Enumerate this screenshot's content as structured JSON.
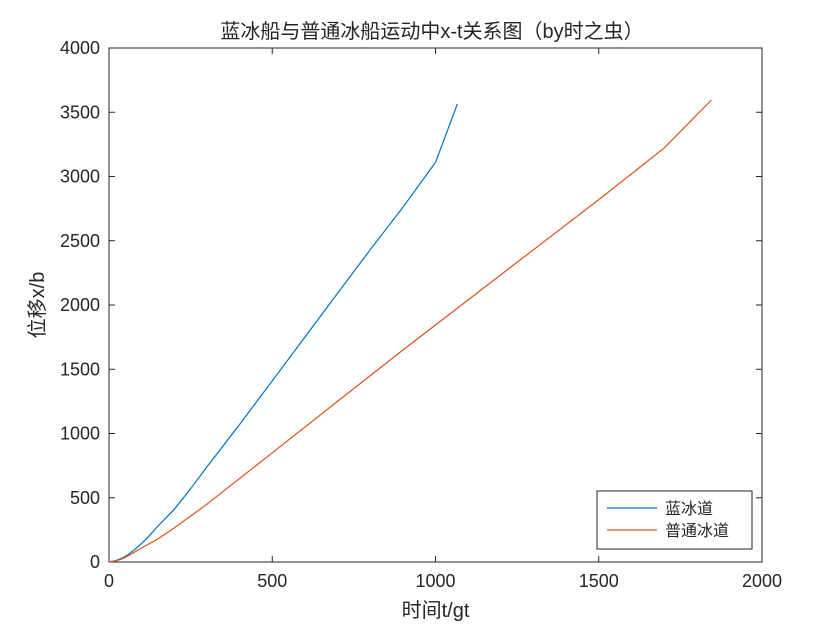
{
  "chart_data": {
    "type": "line",
    "title": "蓝冰船与普通冰船运动中x-t关系图（by时之虫）",
    "xlabel": "时间t/gt",
    "ylabel": "位移x/b",
    "xlim": [
      0,
      2000
    ],
    "ylim": [
      0,
      4000
    ],
    "xticks": [
      0,
      500,
      1000,
      1500,
      2000
    ],
    "yticks": [
      0,
      500,
      1000,
      1500,
      2000,
      2500,
      3000,
      3500,
      4000
    ],
    "xtick_labels": [
      "0",
      "500",
      "1000",
      "1500",
      "2000"
    ],
    "ytick_labels": [
      "0",
      "500",
      "1000",
      "1500",
      "2000",
      "2500",
      "3000",
      "3500",
      "4000"
    ],
    "legend_position": "bottom-right",
    "series": [
      {
        "name": "蓝冰道",
        "color": "#0072BD",
        "x": [
          0,
          20,
          40,
          60,
          80,
          100,
          120,
          150,
          200,
          250,
          300,
          400,
          500,
          600,
          700,
          800,
          900,
          1000,
          1067
        ],
        "y": [
          0,
          10,
          30,
          60,
          100,
          145,
          195,
          280,
          410,
          570,
          740,
          1070,
          1410,
          1750,
          2090,
          2430,
          2760,
          3110,
          3565
        ]
      },
      {
        "name": "普通冰道",
        "color": "#D95319",
        "x": [
          0,
          20,
          40,
          60,
          80,
          100,
          150,
          200,
          300,
          500,
          700,
          900,
          1100,
          1300,
          1500,
          1700,
          1845
        ],
        "y": [
          0,
          8,
          25,
          50,
          80,
          110,
          180,
          265,
          450,
          850,
          1250,
          1650,
          2040,
          2430,
          2820,
          3220,
          3595
        ]
      }
    ]
  }
}
